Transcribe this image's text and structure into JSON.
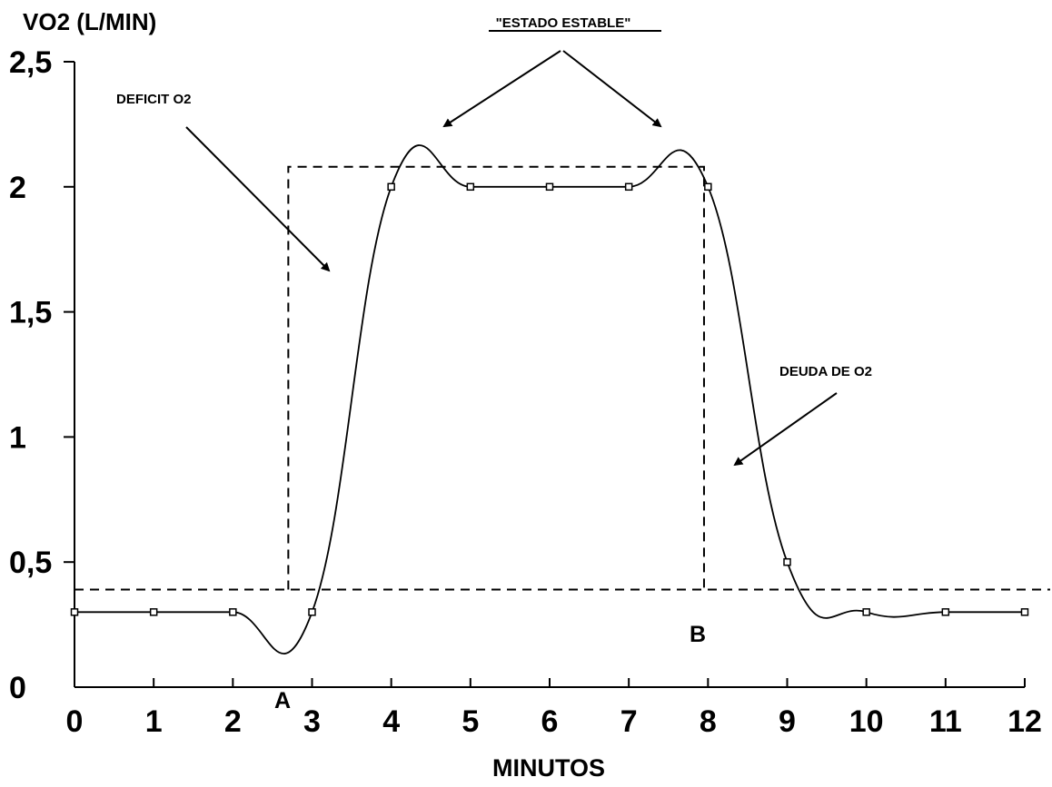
{
  "chart_data": {
    "type": "line",
    "ylabel": "VO2 (L/MIN)",
    "xlabel": "MINUTOS",
    "xlim": [
      0,
      12
    ],
    "ylim": [
      0,
      2.5
    ],
    "x_ticks": [
      "0",
      "1",
      "2",
      "3",
      "4",
      "5",
      "6",
      "7",
      "8",
      "9",
      "10",
      "11",
      "12"
    ],
    "y_ticks": [
      {
        "value": 0,
        "label": "0"
      },
      {
        "value": 0.5,
        "label": "0,5"
      },
      {
        "value": 1,
        "label": "1"
      },
      {
        "value": 1.5,
        "label": "1,5"
      },
      {
        "value": 2,
        "label": "2"
      },
      {
        "value": 2.5,
        "label": "2,5"
      }
    ],
    "series": [
      {
        "x": [
          0,
          1,
          2,
          3,
          4,
          5,
          6,
          7,
          8,
          9,
          10,
          11,
          12
        ],
        "values": [
          0.3,
          0.3,
          0.3,
          0.3,
          2.0,
          2.0,
          2.0,
          2.0,
          2.0,
          0.5,
          0.3,
          0.3,
          0.3
        ]
      }
    ],
    "reference": {
      "baseline_y": 0.39,
      "box": {
        "x0": 2.7,
        "x1": 7.95,
        "y_top": 2.08
      }
    },
    "annotations": {
      "steady_state": "\"ESTADO ESTABLE\"",
      "deficit": "DEFICIT O2",
      "debt": "DEUDA DE O2",
      "point_a": "A",
      "point_b": "B"
    },
    "grid": false,
    "legend": "none"
  }
}
